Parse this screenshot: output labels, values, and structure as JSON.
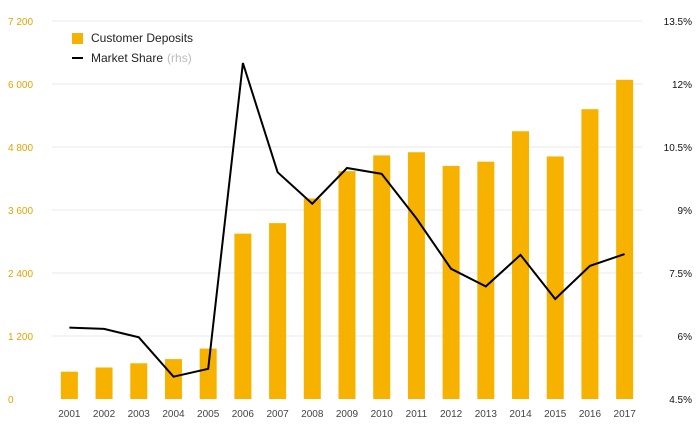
{
  "chart_data": {
    "type": "bar",
    "x": [
      "2001",
      "2002",
      "2003",
      "2004",
      "2005",
      "2006",
      "2007",
      "2008",
      "2009",
      "2010",
      "2011",
      "2012",
      "2013",
      "2014",
      "2015",
      "2016",
      "2017"
    ],
    "series": [
      {
        "name": "Customer Deposits",
        "type": "bar",
        "axis": "left",
        "color": "#f7b200",
        "values": [
          520,
          600,
          680,
          760,
          960,
          3150,
          3350,
          3820,
          4340,
          4640,
          4700,
          4440,
          4520,
          5100,
          4620,
          5520,
          6080
        ]
      },
      {
        "name": "Market Share",
        "name_suffix": "(rhs)",
        "type": "line",
        "axis": "right",
        "color": "#000000",
        "values": [
          6.2,
          6.17,
          5.97,
          5.03,
          5.22,
          12.5,
          9.9,
          9.15,
          10.0,
          9.86,
          8.8,
          7.6,
          7.18,
          7.93,
          6.88,
          7.67,
          7.95
        ]
      }
    ],
    "y_left": {
      "ticks": [
        "0",
        "1 200",
        "2 400",
        "3 600",
        "4 800",
        "6 000",
        "7 200"
      ],
      "range": [
        0,
        7200
      ],
      "color": "#e8a200"
    },
    "y_right": {
      "ticks": [
        "4.5%",
        "6%",
        "7.5%",
        "9%",
        "10.5%",
        "12%",
        "13.5%"
      ],
      "range": [
        4.5,
        13.5
      ],
      "color": "#111111"
    },
    "legend": "top-left",
    "grid": true,
    "title": "",
    "xlabel": "",
    "ylabel": ""
  }
}
